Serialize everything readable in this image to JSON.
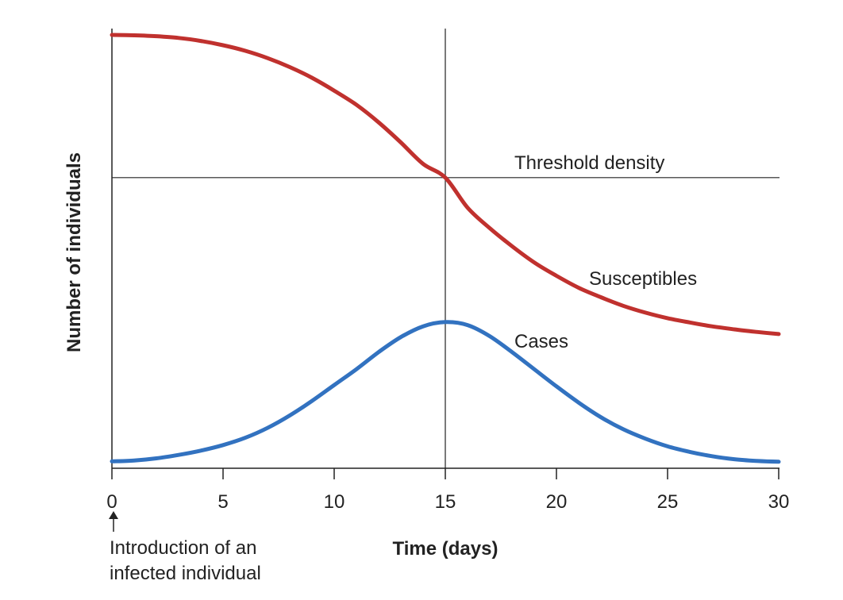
{
  "chart_data": {
    "type": "line",
    "xlabel": "Time (days)",
    "ylabel": "Number of individuals",
    "xlim": [
      0,
      30
    ],
    "ylim": [
      0,
      100
    ],
    "x_ticks": [
      0,
      5,
      10,
      15,
      20,
      25,
      30
    ],
    "grid": false,
    "series": [
      {
        "name": "Susceptibles",
        "color": "#c0312e",
        "x": [
          0,
          1,
          2,
          3,
          4,
          5,
          6,
          7,
          8,
          9,
          10,
          11,
          12,
          13,
          14,
          15,
          16,
          17,
          18,
          19,
          20,
          21,
          22,
          23,
          24,
          25,
          26,
          27,
          28,
          29,
          30
        ],
        "values": [
          100.0,
          99.9,
          99.7,
          99.3,
          98.6,
          97.6,
          96.3,
          94.6,
          92.5,
          90.0,
          87.0,
          83.7,
          79.6,
          74.9,
          69.9,
          66.7,
          59.7,
          54.9,
          50.7,
          46.9,
          43.8,
          41.0,
          38.8,
          36.8,
          35.2,
          33.9,
          32.9,
          32.0,
          31.3,
          30.7,
          30.2
        ]
      },
      {
        "name": "Cases",
        "color": "#3272c0",
        "x": [
          0,
          1,
          2,
          3,
          4,
          5,
          6,
          7,
          8,
          9,
          10,
          11,
          12,
          13,
          14,
          15,
          16,
          17,
          18,
          19,
          20,
          21,
          22,
          23,
          24,
          25,
          26,
          27,
          28,
          29,
          30
        ],
        "values": [
          0.5,
          0.7,
          1.2,
          2.0,
          3.0,
          4.3,
          6.0,
          8.3,
          11.2,
          14.6,
          18.3,
          22.0,
          26.0,
          29.5,
          32.0,
          33.0,
          32.3,
          29.7,
          26.0,
          22.0,
          18.0,
          14.2,
          10.8,
          8.0,
          5.8,
          4.0,
          2.7,
          1.7,
          1.0,
          0.6,
          0.4
        ]
      }
    ],
    "annotations": {
      "threshold_label": "Threshold density",
      "threshold_value": 66.7,
      "peak_day": 15,
      "susceptibles_label": "Susceptibles",
      "cases_label": "Cases",
      "intro_line1": "Introduction of an",
      "intro_line2": "infected individual"
    }
  }
}
